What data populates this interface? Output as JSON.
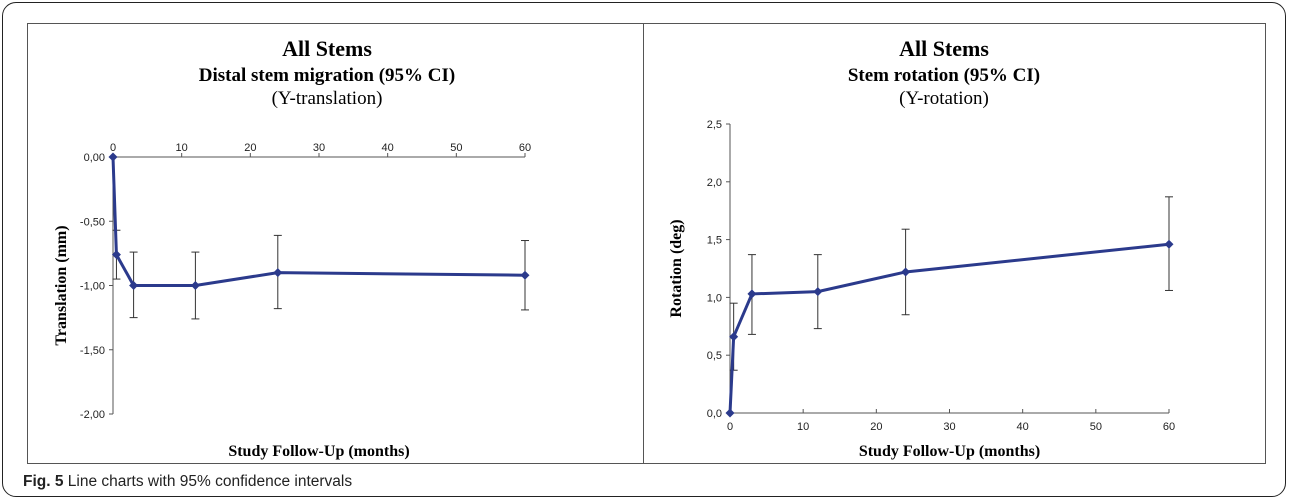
{
  "colors": {
    "series": "#2b3a8c",
    "error_bar": "#333333",
    "axis": "#555555"
  },
  "caption": {
    "label": "Fig. 5",
    "text": "Line charts with 95% confidence intervals"
  },
  "chart_data": [
    {
      "type": "line",
      "title": "All Stems",
      "subtitle": "Distal stem migration (95% CI)",
      "subtitle2": "(Y-translation)",
      "xlabel": "Study Follow-Up (months)",
      "ylabel": "Translation (mm)",
      "xlim": [
        0,
        60
      ],
      "ylim": [
        -2.0,
        0.0
      ],
      "x_ticks": [
        0,
        10,
        20,
        30,
        40,
        50,
        60
      ],
      "y_ticks": [
        "0,00",
        "-0,50",
        "-1,00",
        "-1,50",
        "-2,00"
      ],
      "y_tick_values": [
        0.0,
        -0.5,
        -1.0,
        -1.5,
        -2.0
      ],
      "x_axis_position": "top",
      "grid": false,
      "series": [
        {
          "x": [
            0,
            0.5,
            3,
            12,
            24,
            60
          ],
          "values": [
            0.0,
            -0.76,
            -1.0,
            -1.0,
            -0.9,
            -0.92
          ],
          "ci_low": [
            0.0,
            -0.95,
            -1.25,
            -1.26,
            -1.18,
            -1.19
          ],
          "ci_high": [
            0.0,
            -0.57,
            -0.74,
            -0.74,
            -0.61,
            -0.65
          ]
        }
      ]
    },
    {
      "type": "line",
      "title": "All Stems",
      "subtitle": "Stem rotation (95% CI)",
      "subtitle2": "(Y-rotation)",
      "xlabel": "Study Follow-Up (months)",
      "ylabel": "Rotation (deg)",
      "xlim": [
        0,
        60
      ],
      "ylim": [
        0.0,
        2.5
      ],
      "x_ticks": [
        0,
        10,
        20,
        30,
        40,
        50,
        60
      ],
      "y_ticks": [
        "0,0",
        "0,5",
        "1,0",
        "1,5",
        "2,0",
        "2,5"
      ],
      "y_tick_values": [
        0.0,
        0.5,
        1.0,
        1.5,
        2.0,
        2.5
      ],
      "x_axis_position": "bottom",
      "grid": false,
      "series": [
        {
          "x": [
            0,
            0.5,
            3,
            12,
            24,
            60
          ],
          "values": [
            0.0,
            0.66,
            1.03,
            1.05,
            1.22,
            1.46
          ],
          "ci_low": [
            0.0,
            0.37,
            0.68,
            0.73,
            0.85,
            1.06
          ],
          "ci_high": [
            0.0,
            0.95,
            1.37,
            1.37,
            1.59,
            1.87
          ]
        }
      ]
    }
  ]
}
